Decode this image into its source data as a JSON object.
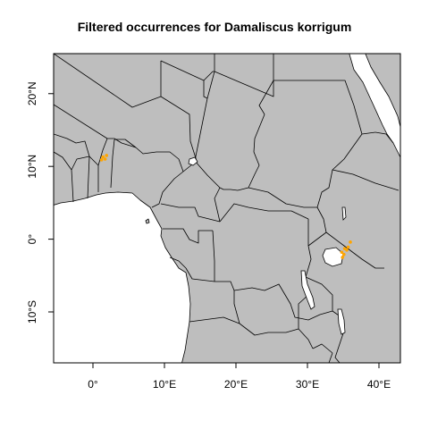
{
  "title": "Filtered occurrences for Damaliscus korrigum",
  "colors": {
    "land": "#bebebe",
    "ocean": "#ffffff",
    "occurrence": "#ffa500",
    "border": "#000000"
  },
  "map": {
    "lon_range": [
      -5.5,
      43
    ],
    "lat_range": [
      -17,
      25.5
    ],
    "x_ticks": [
      {
        "value": 0,
        "label": "0°"
      },
      {
        "value": 10,
        "label": "10°E"
      },
      {
        "value": 20,
        "label": "20°E"
      },
      {
        "value": 30,
        "label": "30°E"
      },
      {
        "value": 40,
        "label": "40°E"
      }
    ],
    "y_ticks": [
      {
        "value": -10,
        "label": "10°S"
      },
      {
        "value": 0,
        "label": "0°"
      },
      {
        "value": 10,
        "label": "10°N"
      },
      {
        "value": 20,
        "label": "20°N"
      }
    ]
  },
  "occurrences": [
    {
      "lon": 1.4,
      "lat": 11.3
    },
    {
      "lon": 1.7,
      "lat": 11.0
    },
    {
      "lon": 1.9,
      "lat": 11.5
    },
    {
      "lon": 1.2,
      "lat": 10.9
    },
    {
      "lon": 35.5,
      "lat": -1.5
    },
    {
      "lon": 35.1,
      "lat": -2.1
    },
    {
      "lon": 34.9,
      "lat": -2.5
    },
    {
      "lon": 35.7,
      "lat": -1.1
    },
    {
      "lon": 36.0,
      "lat": -0.4
    },
    {
      "lon": 34.8,
      "lat": -1.8
    },
    {
      "lon": 35.2,
      "lat": -1.3
    }
  ]
}
